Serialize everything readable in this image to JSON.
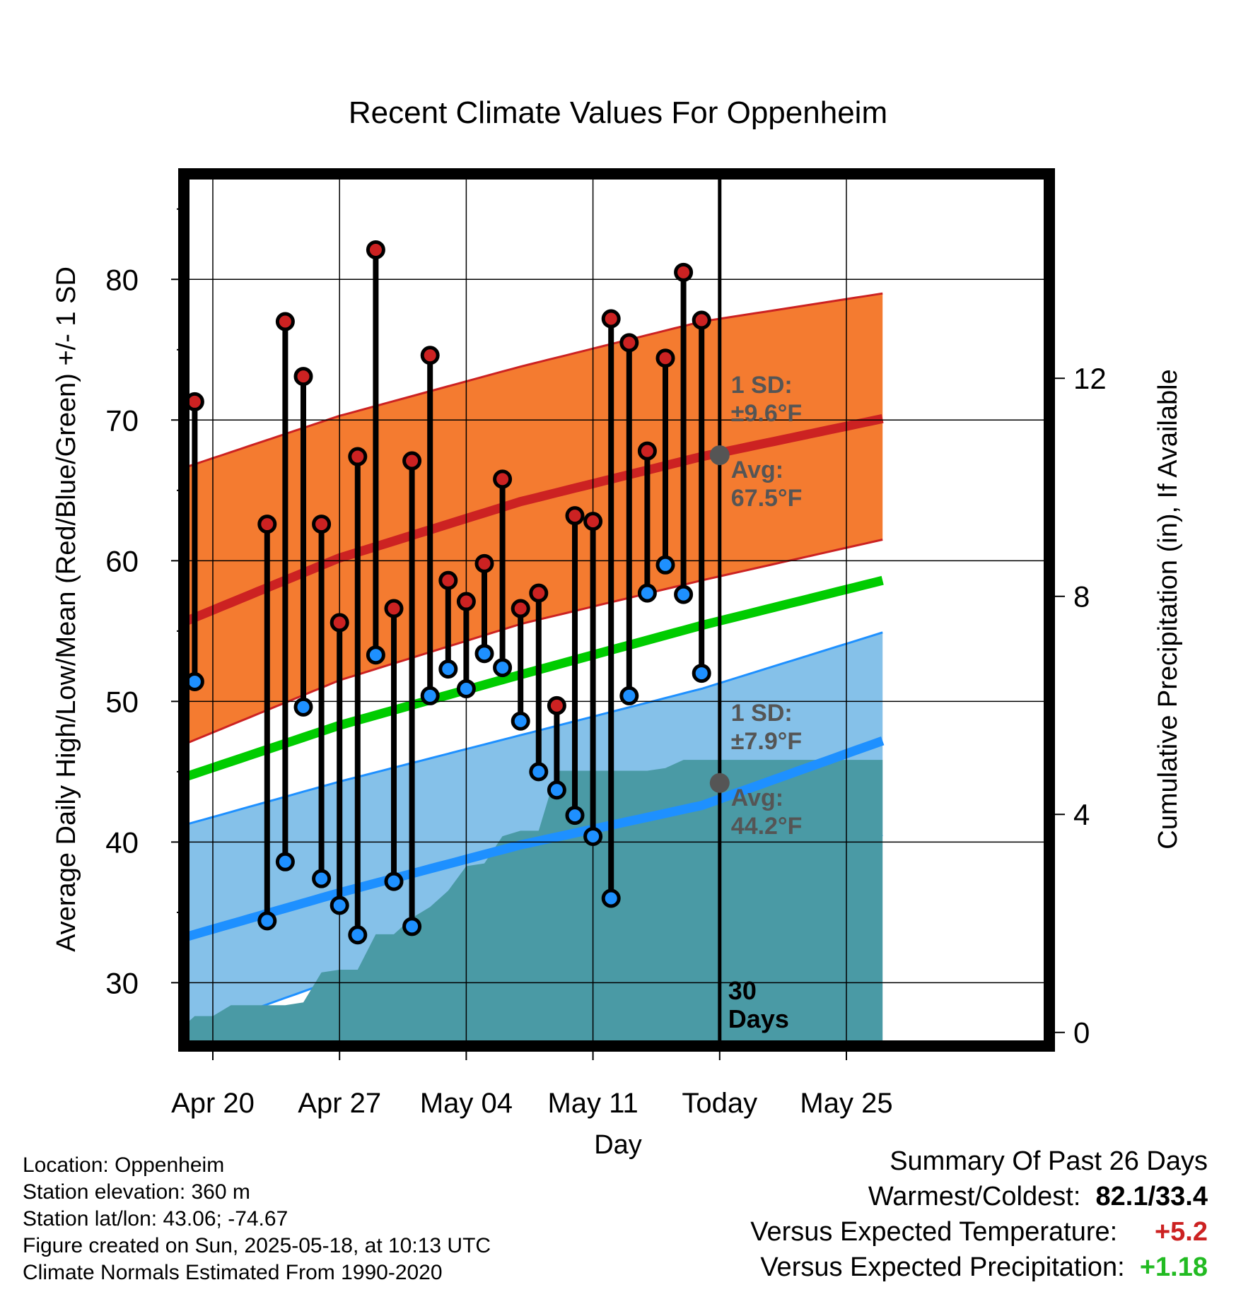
{
  "chart_data": {
    "type": "line",
    "title": "Recent Climate Values For Oppenheim",
    "xlabel": "Day",
    "ylabel": "Average Daily High/Low/Mean (Red/Blue/Green) +/- 1 SD",
    "y2label": "Cumulative Precipitation (in), If Available",
    "ylim": [
      25.5,
      87.5
    ],
    "y2lim": [
      -0.25,
      15.75
    ],
    "yticks": [
      30,
      40,
      50,
      60,
      70,
      80
    ],
    "y2ticks": [
      0,
      4,
      8,
      12
    ],
    "xticks": [
      "Apr 20",
      "Apr 27",
      "May 04",
      "May 11",
      "Today",
      "May 25"
    ],
    "grid": true,
    "days": [
      {
        "date": "Apr 19",
        "high": 71.3,
        "low": 51.4
      },
      {
        "date": "Apr 23",
        "high": 62.6,
        "low": 34.4
      },
      {
        "date": "Apr 24",
        "high": 77.0,
        "low": 38.6
      },
      {
        "date": "Apr 25",
        "high": 73.1,
        "low": 49.6
      },
      {
        "date": "Apr 26",
        "high": 62.6,
        "low": 37.4
      },
      {
        "date": "Apr 27",
        "high": 55.6,
        "low": 35.5
      },
      {
        "date": "Apr 28",
        "high": 67.4,
        "low": 33.4
      },
      {
        "date": "Apr 29",
        "high": 82.1,
        "low": 53.3
      },
      {
        "date": "Apr 30",
        "high": 56.6,
        "low": 37.2
      },
      {
        "date": "May 01",
        "high": 67.1,
        "low": 34.0
      },
      {
        "date": "May 02",
        "high": 74.6,
        "low": 50.4
      },
      {
        "date": "May 03",
        "high": 58.6,
        "low": 52.3
      },
      {
        "date": "May 04",
        "high": 57.1,
        "low": 50.9
      },
      {
        "date": "May 05",
        "high": 59.8,
        "low": 53.4
      },
      {
        "date": "May 06",
        "high": 65.8,
        "low": 52.4
      },
      {
        "date": "May 07",
        "high": 56.6,
        "low": 48.6
      },
      {
        "date": "May 08",
        "high": 57.7,
        "low": 45.0
      },
      {
        "date": "May 09",
        "high": 49.7,
        "low": 43.7
      },
      {
        "date": "May 10",
        "high": 63.2,
        "low": 41.9
      },
      {
        "date": "May 11",
        "high": 62.8,
        "low": 40.4
      },
      {
        "date": "May 12",
        "high": 77.2,
        "low": 36.0
      },
      {
        "date": "May 13",
        "high": 75.5,
        "low": 50.4
      },
      {
        "date": "May 14",
        "high": 67.8,
        "low": 57.7
      },
      {
        "date": "May 15",
        "high": 74.4,
        "low": 59.7
      },
      {
        "date": "May 16",
        "high": 80.5,
        "low": 57.6
      },
      {
        "date": "May 17",
        "high": 77.1,
        "low": 52.0
      }
    ],
    "normals": {
      "dates": [
        "Apr 17",
        "Apr 27",
        "May 07",
        "May 17",
        "May 27"
      ],
      "avg_high": [
        54.9,
        60.2,
        64.2,
        67.4,
        70.1
      ],
      "avg_low": [
        32.7,
        36.4,
        39.8,
        42.6,
        47.2
      ],
      "avg_mean": [
        44.0,
        48.3,
        51.9,
        55.4,
        58.6
      ],
      "high_upper": [
        66.0,
        70.3,
        73.8,
        77.0,
        79.0
      ],
      "high_lower": [
        46.2,
        51.5,
        55.5,
        58.6,
        61.5
      ],
      "low_upper": [
        40.7,
        44.3,
        47.6,
        50.9,
        54.9
      ],
      "low_lower": [
        25.7,
        30.3,
        33.5,
        36.5,
        40.5
      ]
    },
    "precip": {
      "dates": [
        "Apr 17",
        "Apr 18",
        "Apr 19",
        "Apr 20",
        "Apr 21",
        "Apr 22",
        "Apr 23",
        "Apr 24",
        "Apr 25",
        "Apr 26",
        "Apr 27",
        "Apr 28",
        "Apr 29",
        "Apr 30",
        "May 01",
        "May 02",
        "May 03",
        "May 04",
        "May 05",
        "May 06",
        "May 07",
        "May 08",
        "May 09",
        "May 10",
        "May 11",
        "May 12",
        "May 13",
        "May 14",
        "May 15",
        "May 16",
        "May 17",
        "May 27"
      ],
      "values": [
        0.0,
        0.0,
        0.3,
        0.3,
        0.5,
        0.5,
        0.5,
        0.5,
        0.55,
        1.1,
        1.15,
        1.15,
        1.8,
        1.8,
        2.1,
        2.3,
        2.6,
        3.05,
        3.1,
        3.6,
        3.7,
        3.7,
        4.8,
        4.8,
        4.8,
        4.8,
        4.8,
        4.8,
        4.85,
        5.0,
        5.0,
        5.0
      ]
    },
    "today": {
      "label": "Today",
      "days_label": "30",
      "days_word": "Days"
    },
    "high_annotation": {
      "sd_label": "1 SD:",
      "sd_value": "±9.6°F",
      "avg_label": "Avg:",
      "avg_value": "67.5°F",
      "avg": 67.5
    },
    "low_annotation": {
      "sd_label": "1 SD:",
      "sd_value": "±7.9°F",
      "avg_label": "Avg:",
      "avg_value": "44.2°F",
      "avg": 44.2
    },
    "colors": {
      "high_band": "#f47b30",
      "high_line": "#cc2222",
      "low_band": "#85c1e9",
      "low_line": "#1e90ff",
      "mean_line": "#00cc00",
      "precip": "#4a9aa5",
      "annotation": "#555555",
      "high_dot": "#cc2222",
      "low_dot": "#1e90ff"
    }
  },
  "info": {
    "location": "Location: Oppenheim",
    "elevation": "Station elevation: 360 m",
    "latlon": "Station lat/lon: 43.06; -74.67",
    "created": "Figure created on Sun, 2025-05-18, at 10:13 UTC",
    "normals": "Climate Normals Estimated From 1990-2020"
  },
  "summary": {
    "title": "Summary Of Past 26 Days",
    "warmest_label": "Warmest/Coldest:",
    "warmest_value": "82.1/33.4",
    "temp_label": "Versus Expected Temperature:",
    "temp_value": "+5.2",
    "temp_color": "#cc2222",
    "precip_label": "Versus Expected Precipitation:",
    "precip_value": "+1.18",
    "precip_color": "#22bb22"
  }
}
